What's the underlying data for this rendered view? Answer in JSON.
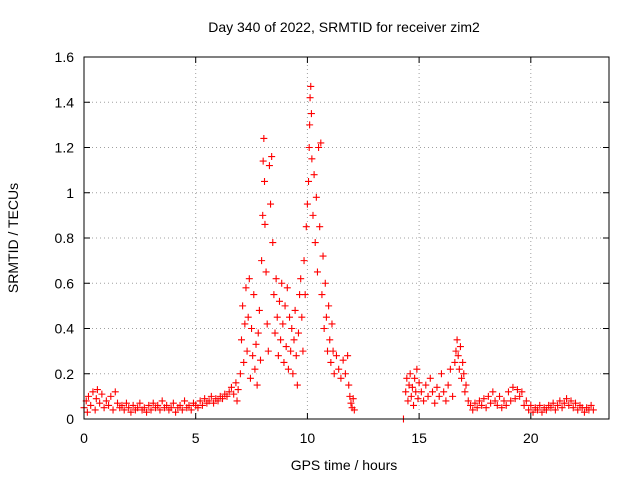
{
  "chart_data": {
    "type": "scatter",
    "title": "Day 340 of 2022, SRMTID for receiver zim2",
    "xlabel": "GPS time / hours",
    "ylabel": "SRMTID / TECUs",
    "xlim": [
      0,
      23.5
    ],
    "ylim": [
      0,
      1.6
    ],
    "x_ticks": [
      0,
      5,
      10,
      15,
      20
    ],
    "x_tick_labels": [
      "0",
      "5",
      "10",
      "15",
      "20"
    ],
    "y_ticks": [
      0,
      0.2,
      0.4,
      0.6,
      0.8,
      1.0,
      1.2,
      1.4,
      1.6
    ],
    "y_tick_labels": [
      "0",
      "0.2",
      "0.4",
      "0.6",
      "0.8",
      "1",
      "1.2",
      "1.4",
      "1.6"
    ],
    "grid": true,
    "marker": "plus",
    "color": "#ff0000",
    "series": [
      {
        "name": "zim2",
        "points": [
          [
            0.0,
            0.05
          ],
          [
            0.1,
            0.08
          ],
          [
            0.15,
            0.03
          ],
          [
            0.2,
            0.1
          ],
          [
            0.3,
            0.06
          ],
          [
            0.4,
            0.12
          ],
          [
            0.5,
            0.04
          ],
          [
            0.55,
            0.09
          ],
          [
            0.6,
            0.13
          ],
          [
            0.7,
            0.07
          ],
          [
            0.8,
            0.11
          ],
          [
            0.9,
            0.05
          ],
          [
            1.0,
            0.08
          ],
          [
            1.1,
            0.06
          ],
          [
            1.2,
            0.1
          ],
          [
            1.3,
            0.04
          ],
          [
            1.4,
            0.12
          ],
          [
            1.5,
            0.07
          ],
          [
            1.6,
            0.05
          ],
          [
            1.7,
            0.06
          ],
          [
            1.8,
            0.04
          ],
          [
            1.9,
            0.07
          ],
          [
            2.0,
            0.05
          ],
          [
            2.1,
            0.03
          ],
          [
            2.2,
            0.06
          ],
          [
            2.3,
            0.04
          ],
          [
            2.4,
            0.05
          ],
          [
            2.5,
            0.07
          ],
          [
            2.6,
            0.04
          ],
          [
            2.7,
            0.05
          ],
          [
            2.8,
            0.03
          ],
          [
            2.9,
            0.06
          ],
          [
            3.0,
            0.04
          ],
          [
            3.1,
            0.07
          ],
          [
            3.2,
            0.05
          ],
          [
            3.3,
            0.06
          ],
          [
            3.4,
            0.04
          ],
          [
            3.5,
            0.08
          ],
          [
            3.6,
            0.05
          ],
          [
            3.7,
            0.06
          ],
          [
            3.8,
            0.04
          ],
          [
            3.9,
            0.05
          ],
          [
            4.0,
            0.07
          ],
          [
            4.1,
            0.03
          ],
          [
            4.2,
            0.05
          ],
          [
            4.3,
            0.06
          ],
          [
            4.4,
            0.04
          ],
          [
            4.5,
            0.08
          ],
          [
            4.6,
            0.05
          ],
          [
            4.7,
            0.06
          ],
          [
            4.8,
            0.04
          ],
          [
            4.9,
            0.07
          ],
          [
            5.0,
            0.06
          ],
          [
            5.1,
            0.05
          ],
          [
            5.2,
            0.08
          ],
          [
            5.3,
            0.06
          ],
          [
            5.4,
            0.09
          ],
          [
            5.5,
            0.07
          ],
          [
            5.6,
            0.08
          ],
          [
            5.7,
            0.1
          ],
          [
            5.8,
            0.07
          ],
          [
            5.9,
            0.09
          ],
          [
            6.0,
            0.08
          ],
          [
            6.1,
            0.1
          ],
          [
            6.2,
            0.09
          ],
          [
            6.3,
            0.11
          ],
          [
            6.4,
            0.1
          ],
          [
            6.5,
            0.12
          ],
          [
            6.6,
            0.14
          ],
          [
            6.7,
            0.11
          ],
          [
            6.8,
            0.16
          ],
          [
            6.85,
            0.08
          ],
          [
            6.9,
            0.13
          ],
          [
            7.0,
            0.2
          ],
          [
            7.05,
            0.35
          ],
          [
            7.1,
            0.5
          ],
          [
            7.15,
            0.25
          ],
          [
            7.2,
            0.42
          ],
          [
            7.25,
            0.58
          ],
          [
            7.3,
            0.3
          ],
          [
            7.35,
            0.45
          ],
          [
            7.4,
            0.62
          ],
          [
            7.45,
            0.18
          ],
          [
            7.5,
            0.4
          ],
          [
            7.55,
            0.28
          ],
          [
            7.6,
            0.55
          ],
          [
            7.65,
            0.22
          ],
          [
            7.7,
            0.33
          ],
          [
            7.75,
            0.15
          ],
          [
            7.8,
            0.38
          ],
          [
            7.85,
            0.48
          ],
          [
            7.9,
            0.26
          ],
          [
            7.95,
            0.7
          ],
          [
            8.0,
            0.9
          ],
          [
            8.02,
            1.14
          ],
          [
            8.05,
            1.24
          ],
          [
            8.08,
            1.05
          ],
          [
            8.1,
            0.86
          ],
          [
            8.15,
            0.65
          ],
          [
            8.2,
            0.42
          ],
          [
            8.25,
            0.3
          ],
          [
            8.3,
            1.12
          ],
          [
            8.35,
            0.95
          ],
          [
            8.4,
            1.16
          ],
          [
            8.45,
            0.78
          ],
          [
            8.5,
            0.55
          ],
          [
            8.55,
            0.38
          ],
          [
            8.6,
            0.62
          ],
          [
            8.65,
            0.45
          ],
          [
            8.7,
            0.28
          ],
          [
            8.75,
            0.52
          ],
          [
            8.8,
            0.35
          ],
          [
            8.85,
            0.6
          ],
          [
            8.9,
            0.42
          ],
          [
            8.95,
            0.25
          ],
          [
            9.0,
            0.5
          ],
          [
            9.05,
            0.32
          ],
          [
            9.1,
            0.58
          ],
          [
            9.15,
            0.22
          ],
          [
            9.2,
            0.45
          ],
          [
            9.25,
            0.3
          ],
          [
            9.3,
            0.4
          ],
          [
            9.35,
            0.2
          ],
          [
            9.4,
            0.35
          ],
          [
            9.45,
            0.48
          ],
          [
            9.5,
            0.28
          ],
          [
            9.55,
            0.15
          ],
          [
            9.6,
            0.38
          ],
          [
            9.65,
            0.55
          ],
          [
            9.7,
            0.62
          ],
          [
            9.75,
            0.45
          ],
          [
            9.8,
            0.3
          ],
          [
            9.85,
            0.7
          ],
          [
            9.9,
            0.55
          ],
          [
            9.95,
            0.85
          ],
          [
            10.0,
            0.95
          ],
          [
            10.05,
            1.05
          ],
          [
            10.08,
            1.2
          ],
          [
            10.1,
            1.3
          ],
          [
            10.12,
            1.42
          ],
          [
            10.15,
            1.47
          ],
          [
            10.18,
            1.35
          ],
          [
            10.2,
            1.15
          ],
          [
            10.25,
            0.9
          ],
          [
            10.3,
            1.08
          ],
          [
            10.35,
            0.78
          ],
          [
            10.4,
            0.98
          ],
          [
            10.45,
            0.65
          ],
          [
            10.5,
            1.2
          ],
          [
            10.55,
            0.85
          ],
          [
            10.6,
            1.22
          ],
          [
            10.65,
            0.55
          ],
          [
            10.7,
            0.72
          ],
          [
            10.75,
            0.4
          ],
          [
            10.8,
            0.6
          ],
          [
            10.85,
            0.45
          ],
          [
            10.9,
            0.3
          ],
          [
            10.95,
            0.5
          ],
          [
            11.0,
            0.35
          ],
          [
            11.05,
            0.25
          ],
          [
            11.1,
            0.42
          ],
          [
            11.15,
            0.3
          ],
          [
            11.2,
            0.2
          ],
          [
            11.3,
            0.28
          ],
          [
            11.4,
            0.22
          ],
          [
            11.5,
            0.18
          ],
          [
            11.6,
            0.26
          ],
          [
            11.7,
            0.2
          ],
          [
            11.8,
            0.28
          ],
          [
            11.85,
            0.15
          ],
          [
            11.9,
            0.1
          ],
          [
            11.95,
            0.07
          ],
          [
            12.0,
            0.05
          ],
          [
            12.05,
            0.09
          ],
          [
            12.1,
            0.04
          ],
          [
            14.3,
            0.0
          ],
          [
            14.4,
            0.12
          ],
          [
            14.45,
            0.18
          ],
          [
            14.5,
            0.08
          ],
          [
            14.55,
            0.15
          ],
          [
            14.6,
            0.2
          ],
          [
            14.65,
            0.1
          ],
          [
            14.7,
            0.14
          ],
          [
            14.75,
            0.06
          ],
          [
            14.8,
            0.18
          ],
          [
            14.85,
            0.12
          ],
          [
            14.9,
            0.22
          ],
          [
            14.95,
            0.09
          ],
          [
            15.0,
            0.16
          ],
          [
            15.1,
            0.12
          ],
          [
            15.2,
            0.08
          ],
          [
            15.3,
            0.15
          ],
          [
            15.4,
            0.1
          ],
          [
            15.5,
            0.18
          ],
          [
            15.6,
            0.12
          ],
          [
            15.7,
            0.07
          ],
          [
            15.8,
            0.14
          ],
          [
            15.9,
            0.1
          ],
          [
            16.0,
            0.2
          ],
          [
            16.1,
            0.12
          ],
          [
            16.2,
            0.08
          ],
          [
            16.3,
            0.15
          ],
          [
            16.4,
            0.22
          ],
          [
            16.5,
            0.1
          ],
          [
            16.6,
            0.25
          ],
          [
            16.65,
            0.3
          ],
          [
            16.7,
            0.35
          ],
          [
            16.75,
            0.28
          ],
          [
            16.8,
            0.22
          ],
          [
            16.85,
            0.32
          ],
          [
            16.9,
            0.18
          ],
          [
            16.95,
            0.25
          ],
          [
            17.0,
            0.2
          ],
          [
            17.05,
            0.12
          ],
          [
            17.1,
            0.15
          ],
          [
            17.2,
            0.08
          ],
          [
            17.3,
            0.06
          ],
          [
            17.4,
            0.04
          ],
          [
            17.5,
            0.07
          ],
          [
            17.6,
            0.05
          ],
          [
            17.7,
            0.08
          ],
          [
            17.8,
            0.06
          ],
          [
            17.9,
            0.09
          ],
          [
            18.0,
            0.05
          ],
          [
            18.1,
            0.1
          ],
          [
            18.2,
            0.07
          ],
          [
            18.3,
            0.12
          ],
          [
            18.4,
            0.08
          ],
          [
            18.5,
            0.06
          ],
          [
            18.6,
            0.1
          ],
          [
            18.7,
            0.05
          ],
          [
            18.8,
            0.08
          ],
          [
            18.9,
            0.06
          ],
          [
            19.0,
            0.12
          ],
          [
            19.1,
            0.08
          ],
          [
            19.2,
            0.14
          ],
          [
            19.3,
            0.09
          ],
          [
            19.4,
            0.13
          ],
          [
            19.5,
            0.1
          ],
          [
            19.6,
            0.12
          ],
          [
            19.7,
            0.06
          ],
          [
            19.8,
            0.08
          ],
          [
            19.9,
            0.04
          ],
          [
            20.0,
            0.06
          ],
          [
            20.1,
            0.03
          ],
          [
            20.2,
            0.05
          ],
          [
            20.3,
            0.04
          ],
          [
            20.4,
            0.06
          ],
          [
            20.5,
            0.03
          ],
          [
            20.6,
            0.05
          ],
          [
            20.7,
            0.04
          ],
          [
            20.8,
            0.06
          ],
          [
            20.9,
            0.05
          ],
          [
            21.0,
            0.07
          ],
          [
            21.1,
            0.04
          ],
          [
            21.2,
            0.06
          ],
          [
            21.3,
            0.08
          ],
          [
            21.4,
            0.05
          ],
          [
            21.5,
            0.07
          ],
          [
            21.6,
            0.09
          ],
          [
            21.7,
            0.06
          ],
          [
            21.8,
            0.08
          ],
          [
            21.9,
            0.05
          ],
          [
            22.0,
            0.07
          ],
          [
            22.1,
            0.04
          ],
          [
            22.2,
            0.06
          ],
          [
            22.3,
            0.05
          ],
          [
            22.4,
            0.03
          ],
          [
            22.5,
            0.05
          ],
          [
            22.6,
            0.04
          ],
          [
            22.7,
            0.06
          ],
          [
            22.8,
            0.04
          ]
        ]
      }
    ]
  }
}
